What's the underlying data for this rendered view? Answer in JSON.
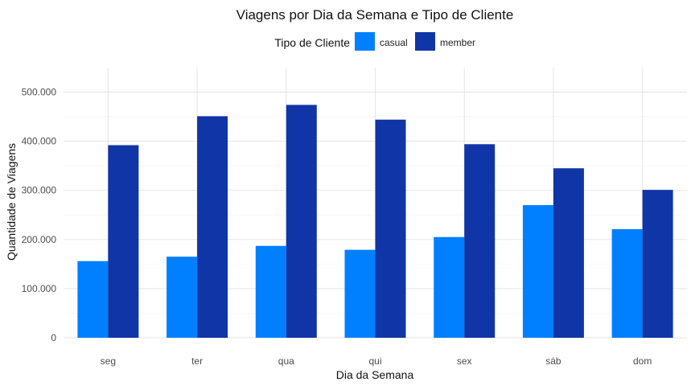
{
  "chart_data": {
    "type": "bar",
    "title": "Viagens por Dia da Semana e Tipo de Cliente",
    "xlabel": "Dia da Semana",
    "ylabel": "Quantidade de Viagens",
    "legend_title": "Tipo de Cliente",
    "legend_position": "top",
    "grid": true,
    "categories": [
      "seg",
      "ter",
      "qua",
      "qui",
      "sex",
      "sáb",
      "dom"
    ],
    "series": [
      {
        "name": "casual",
        "color": "#0080ff",
        "values": [
          156000,
          165000,
          187000,
          179000,
          205000,
          270000,
          221000
        ]
      },
      {
        "name": "member",
        "color": "#1035a6",
        "values": [
          392000,
          451000,
          474000,
          444000,
          394000,
          345000,
          301000
        ]
      }
    ],
    "ylim": [
      0,
      550000
    ],
    "yticks": [
      0,
      100000,
      200000,
      300000,
      400000,
      500000
    ],
    "ytick_labels": [
      "0",
      "100.000",
      "200.000",
      "300.000",
      "400.000",
      "500.000"
    ]
  }
}
